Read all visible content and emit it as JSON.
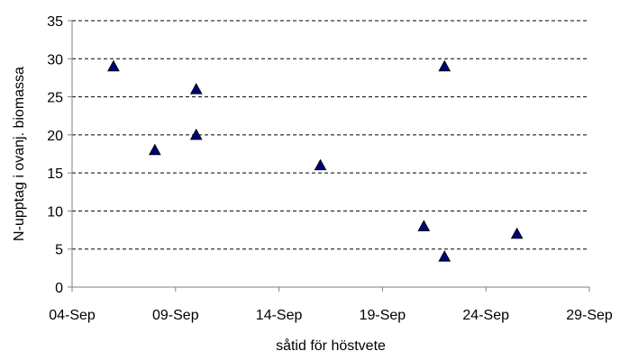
{
  "chart_data": {
    "type": "scatter",
    "title": "",
    "xlabel": "såtid för höstvete",
    "ylabel": "N-upptag i ovanj. biomassa",
    "x_type": "date",
    "x_year": "2001",
    "xlim": [
      "2001-09-04",
      "2001-09-29"
    ],
    "x_ticks": [
      "2001-09-04",
      "2001-09-09",
      "2001-09-14",
      "2001-09-19",
      "2001-09-24",
      "2001-09-29"
    ],
    "x_tick_labels": [
      "04-Sep",
      "09-Sep",
      "14-Sep",
      "19-Sep",
      "24-Sep",
      "29-Sep"
    ],
    "ylim": [
      0,
      35
    ],
    "y_ticks": [
      0,
      5,
      10,
      15,
      20,
      25,
      30,
      35
    ],
    "y_tick_labels": [
      "0",
      "5",
      "10",
      "15",
      "20",
      "25",
      "30",
      "35"
    ],
    "grid": "horizontal dashed",
    "legend": "none",
    "marker": "triangle",
    "marker_color": "#000080",
    "points": [
      {
        "x": "2001-09-06",
        "y": 29
      },
      {
        "x": "2001-09-08",
        "y": 18
      },
      {
        "x": "2001-09-10",
        "y": 26
      },
      {
        "x": "2001-09-10",
        "y": 20
      },
      {
        "x": "2001-09-16",
        "y": 16
      },
      {
        "x": "2001-09-21",
        "y": 8
      },
      {
        "x": "2001-09-22",
        "y": 29
      },
      {
        "x": "2001-09-22",
        "y": 4
      },
      {
        "x": "2001-09-25.5",
        "y": 7
      }
    ]
  }
}
